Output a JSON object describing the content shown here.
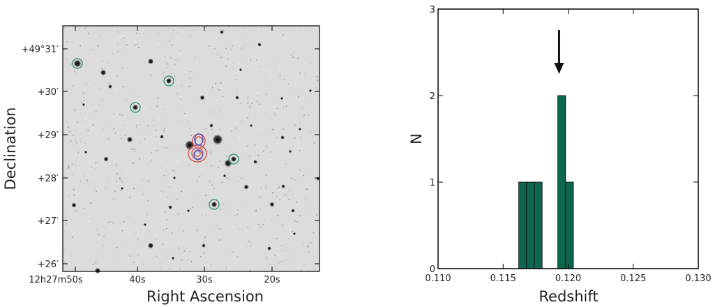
{
  "chart_data": [
    {
      "type": "image",
      "panel": "sky-image",
      "xlabel": "Right Ascension",
      "ylabel": "Declination",
      "x_ticks": [
        "12h27m50s",
        "40s",
        "30s",
        "20s"
      ],
      "y_ticks": [
        "+49°31′",
        "+30′",
        "+29′",
        "+28′",
        "+27′",
        "+26′"
      ],
      "markers": "green circles around galaxies; red and blue contours at center"
    },
    {
      "type": "bar",
      "panel": "redshift-histogram",
      "xlabel": "Redshift",
      "ylabel": "N",
      "xlim": [
        0.11,
        0.13
      ],
      "ylim": [
        0,
        3
      ],
      "x_ticks": [
        "0.110",
        "0.115",
        "0.120",
        "0.125",
        "0.130"
      ],
      "y_ticks": [
        "0",
        "1",
        "2",
        "3"
      ],
      "bin_width": 0.0006,
      "bins": [
        {
          "x": 0.1162,
          "value": 1
        },
        {
          "x": 0.1168,
          "value": 1
        },
        {
          "x": 0.1174,
          "value": 1
        },
        {
          "x": 0.1192,
          "value": 2
        },
        {
          "x": 0.1198,
          "value": 1
        }
      ],
      "arrow_at": 0.1193,
      "bar_color": "#0e6650"
    }
  ]
}
